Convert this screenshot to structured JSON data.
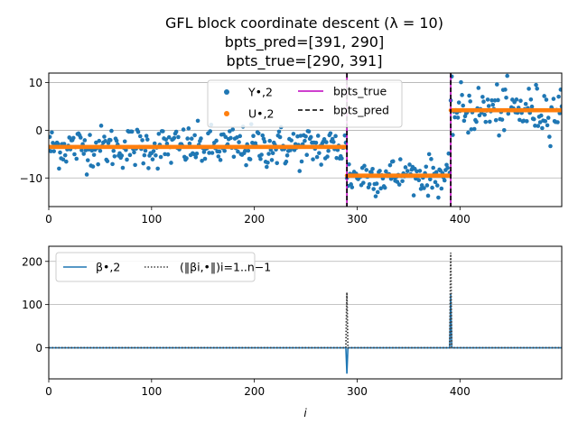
{
  "chart_data": [
    {
      "type": "scatter",
      "title_lines": [
        "GFL block coordinate descent (λ = 10)",
        "bpts_pred=[391, 290]",
        "bpts_true=[290, 391]"
      ],
      "xlim": [
        0,
        499
      ],
      "ylim": [
        -16,
        12
      ],
      "xticks": [
        0,
        100,
        200,
        300,
        400
      ],
      "yticks": [
        -10,
        0,
        10
      ],
      "ytick_labels": [
        "−10",
        "0",
        "10"
      ],
      "grid": "y",
      "legend": {
        "placement": "upper-center",
        "ncol": 2
      },
      "n_points": 500,
      "segments": [
        {
          "start": 0,
          "end": 289,
          "level": -3.5,
          "noise": 2.2
        },
        {
          "start": 290,
          "end": 390,
          "level": -9.5,
          "noise": 2.0
        },
        {
          "start": 391,
          "end": 499,
          "level": 4.2,
          "noise": 2.6
        }
      ],
      "series": [
        {
          "name": "Y•,2",
          "kind": "scatter",
          "color": "#1f77b4"
        },
        {
          "name": "U•,2",
          "kind": "scatter",
          "color": "#ff7f0e",
          "values_by_segment": [
            -3.5,
            -9.5,
            4.2
          ]
        },
        {
          "name": "bpts_true",
          "kind": "vline",
          "color": "#bf00bf",
          "x": [
            290,
            391
          ]
        },
        {
          "name": "bpts_pred",
          "kind": "vline",
          "color": "#000000",
          "x": [
            391,
            290
          ]
        }
      ]
    },
    {
      "type": "line",
      "xlabel": "i",
      "xlim": [
        0,
        499
      ],
      "ylim": [
        -72,
        235
      ],
      "xticks": [
        0,
        100,
        200,
        300,
        400
      ],
      "yticks": [
        0,
        100,
        200
      ],
      "ytick_labels": [
        "0",
        "100",
        "200"
      ],
      "grid": "y",
      "legend": {
        "placement": "upper-left",
        "ncol": 2
      },
      "series": [
        {
          "name": "β•,2",
          "style": "solid",
          "color": "#1f77b4",
          "points": [
            [
              0,
              0
            ],
            [
              289,
              0
            ],
            [
              290,
              -60
            ],
            [
              291,
              0
            ],
            [
              390,
              0
            ],
            [
              391,
              125
            ],
            [
              392,
              0
            ],
            [
              499,
              0
            ]
          ]
        },
        {
          "name": "(‖βi,•‖)i=1..n−1",
          "style": "dotted",
          "color": "#404040",
          "points": [
            [
              0,
              0
            ],
            [
              289,
              0
            ],
            [
              290,
              128
            ],
            [
              291,
              0
            ],
            [
              390,
              0
            ],
            [
              391,
              220
            ],
            [
              392,
              0
            ],
            [
              499,
              0
            ]
          ]
        }
      ]
    }
  ]
}
